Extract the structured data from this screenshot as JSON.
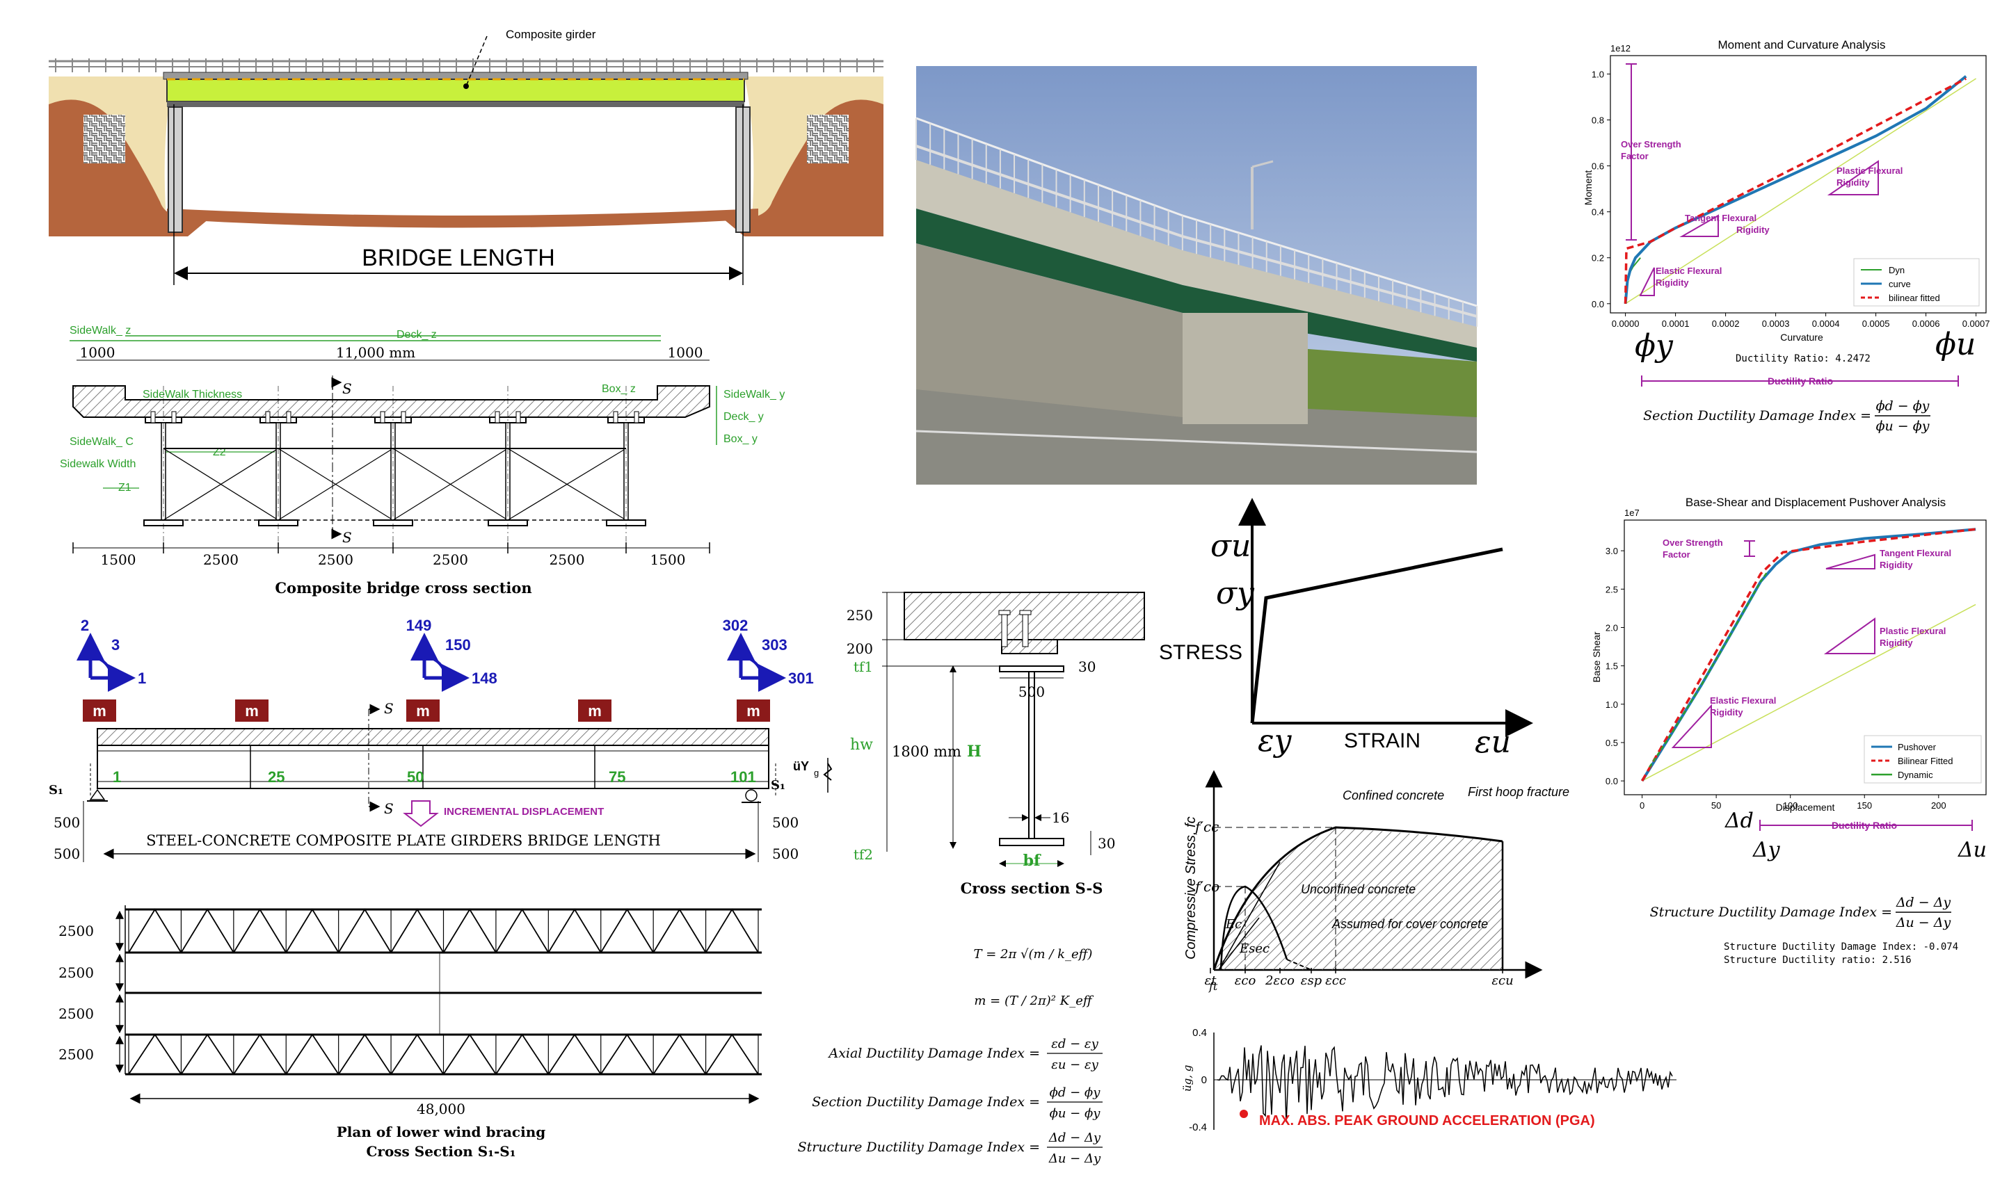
{
  "colors": {
    "navy": "#1a1ab5",
    "maroon": "#8b1a1a",
    "green": "#2ca02c",
    "lime": "#9acd32",
    "purple": "#a020a0",
    "red": "#e31a1c",
    "blue": "#1f77b4",
    "soil": "#b5653d",
    "tan": "#f0e0b0",
    "girder": "#c8f03c"
  },
  "elevation": {
    "girder_label": "Composite girder",
    "length_label": "BRIDGE LENGTH"
  },
  "cross": {
    "sidewalk_z": "SideWalk_ z",
    "deck_z": "Deck_ z",
    "dim_1000a": "1000",
    "dim_11000": "11,000 mm",
    "dim_1000b": "1000",
    "sidewalk_thickness": "SideWalk Thickness",
    "box_z": "Box_ z",
    "sidewalk_y": "SideWalk_ y",
    "deck_y": "Deck_ y",
    "box_y": "Box_ y",
    "sidewalk_c": "SideWalk_ C",
    "z2": "Z2",
    "sidewalk_width": "Sidewalk Width",
    "z1": "Z1",
    "s_top": "S",
    "s_bot": "S",
    "bottom_dims": [
      "1500",
      "2500",
      "2500",
      "2500",
      "2500",
      "1500"
    ],
    "caption": "Composite bridge cross section"
  },
  "section": {
    "d250": "250",
    "d200": "200",
    "tf1": "tf1",
    "d30a": "30",
    "d500": "500",
    "hw": "hw",
    "d1800": "1800 mm",
    "H": "H",
    "d16": "16",
    "d30b": "30",
    "tf2": "tf2",
    "bf": "bf",
    "caption": "Cross section S-S"
  },
  "long": {
    "axes": [
      {
        "a": "2",
        "b": "3",
        "c": "1"
      },
      {
        "a": "149",
        "b": "150",
        "c": "148"
      },
      {
        "a": "302",
        "b": "303",
        "c": "301"
      }
    ],
    "mass": "m",
    "nodes": [
      "1",
      "25",
      "50",
      "75",
      "101"
    ],
    "s1": "S₁",
    "s_top": "S",
    "s_bot": "S",
    "incremental": "INCREMENTAL  DISPLACEMENT",
    "uy": "üY",
    "g": "g",
    "dims": [
      "500",
      "500",
      "500",
      "500"
    ],
    "span_label": "STEEL-CONCRETE COMPOSITE PLATE GIRDERS BRIDGE LENGTH"
  },
  "plan": {
    "dims": [
      "2500",
      "2500",
      "2500",
      "2500"
    ],
    "total": "48,000",
    "caption1": "Plan of lower wind bracing",
    "caption2": "Cross Section S₁-S₁"
  },
  "formulas": {
    "T": "T = 2π √(m / k_eff)",
    "m": "m = (T / 2π)² K_eff",
    "axial": "Axial Ductility Damage Index =",
    "axial_num": "εd − εy",
    "axial_den": "εu − εy",
    "section": "Section Ductility Damage Index =",
    "section_num": "ϕd − ϕy",
    "section_den": "ϕu − ϕy",
    "structure": "Structure Ductility Damage Index =",
    "structure_num": "Δd − Δy",
    "structure_den": "Δu − Δy"
  },
  "stress_strain": {
    "sigma_u": "σu",
    "sigma_y": "σy",
    "stress": "STRESS",
    "eps_y": "εy",
    "strain": "STRAIN",
    "eps_u": "εu"
  },
  "mander": {
    "ylabel": "Compressive Stress, fc",
    "fcc": "f′cc",
    "fco": "f′co",
    "confined": "Confined concrete",
    "first_hoop": "First hoop fracture",
    "unconfined": "Unconfined concrete",
    "assumed": "Assumed for cover concrete",
    "Ec": "Ec",
    "Esec": "Esec",
    "x_ticks": [
      "εt",
      "εco",
      "2εco",
      "εsp",
      "εcc",
      "εcu"
    ],
    "ft": "ft"
  },
  "pga": {
    "ylabel": "üg, g",
    "ticks": [
      "0.4",
      "0",
      "-0.4"
    ],
    "label": "MAX. ABS. PEAK GROUND ACCELERATION (PGA)"
  },
  "moment_chart": {
    "title": "Moment and Curvature Analysis",
    "exponent": "1e12",
    "xlabel": "Curvature",
    "ylabel": "Moment",
    "yticks": [
      "0.0",
      "0.2",
      "0.4",
      "0.6",
      "0.8",
      "1.0"
    ],
    "xticks": [
      "0.0000",
      "0.0001",
      "0.0002",
      "0.0003",
      "0.0004",
      "0.0005",
      "0.0006",
      "0.0007"
    ],
    "legend": [
      "Dyn",
      "curve",
      "bilinear fitted"
    ],
    "over_strength": "Over Strength Factor",
    "plastic": "Plastic Flexural Rigidity",
    "tangent": "Tangent Flexural Rigidity",
    "elastic": "Elastic Flexural Rigidity",
    "ductility_ratio_text": "Ductility Ratio: 4.2472",
    "phi_y": "ϕy",
    "phi_u": "ϕu",
    "ductility_ratio": "Ductility Ratio",
    "index_label": "Section Ductility Damage Index =",
    "num": "ϕd − ϕy",
    "den": "ϕu − ϕy"
  },
  "pushover_chart": {
    "title": "Base-Shear and Displacement Pushover Analysis",
    "exponent": "1e7",
    "xlabel": "Displacement",
    "ylabel": "Base Shear",
    "yticks": [
      "0.0",
      "0.5",
      "1.0",
      "1.5",
      "2.0",
      "2.5",
      "3.0"
    ],
    "xticks": [
      "0",
      "50",
      "100",
      "150",
      "200"
    ],
    "legend": [
      "Pushover",
      "Bilinear Fitted",
      "Dynamic"
    ],
    "over_strength": "Over Strength Factor",
    "tangent": "Tangent Flexural Rigidity",
    "plastic": "Plastic Flexural Rigidity",
    "elastic": "Elastic Flexural Rigidity",
    "delta_d": "Δd",
    "delta_y": "Δy",
    "delta_u": "Δu",
    "ductility_ratio": "Ductility Ratio",
    "index_label": "Structure Ductility Damage Index =",
    "num": "Δd − Δy",
    "den": "Δu − Δy",
    "index_value": "Structure Ductility Damage Index: -0.074",
    "ratio_value": "Structure Ductility ratio: 2.516"
  }
}
